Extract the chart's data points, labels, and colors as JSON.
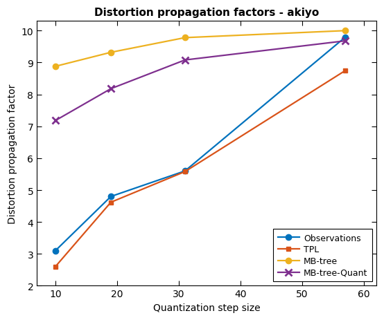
{
  "title": "Distortion propagation factors - akiyo",
  "xlabel": "Quantization step size",
  "ylabel": "Distortion propagation factor",
  "x": [
    10,
    19,
    31,
    57
  ],
  "series": [
    {
      "label": "Observations",
      "y": [
        3.1,
        4.8,
        5.6,
        9.8
      ],
      "color": "#0072bd",
      "marker": "o"
    },
    {
      "label": "TPL",
      "y": [
        2.6,
        4.62,
        5.58,
        8.75
      ],
      "color": "#d95319",
      "marker": "s"
    },
    {
      "label": "MB-tree",
      "y": [
        8.88,
        9.32,
        9.78,
        10.0
      ],
      "color": "#edb120",
      "marker": "o"
    },
    {
      "label": "MB-tree-Quant",
      "y": [
        7.18,
        8.18,
        9.08,
        9.68
      ],
      "color": "#7e2f8e",
      "marker": "x"
    }
  ],
  "xlim": [
    7,
    62
  ],
  "ylim": [
    2,
    10.3
  ],
  "xticks": [
    10,
    20,
    30,
    40,
    50,
    60
  ],
  "yticks": [
    2,
    3,
    4,
    5,
    6,
    7,
    8,
    9,
    10
  ],
  "legend_loc": "lower right",
  "title_fontsize": 11,
  "label_fontsize": 10,
  "tick_fontsize": 10,
  "linewidth": 1.6,
  "markersize": 6,
  "background_color": "#ffffff"
}
